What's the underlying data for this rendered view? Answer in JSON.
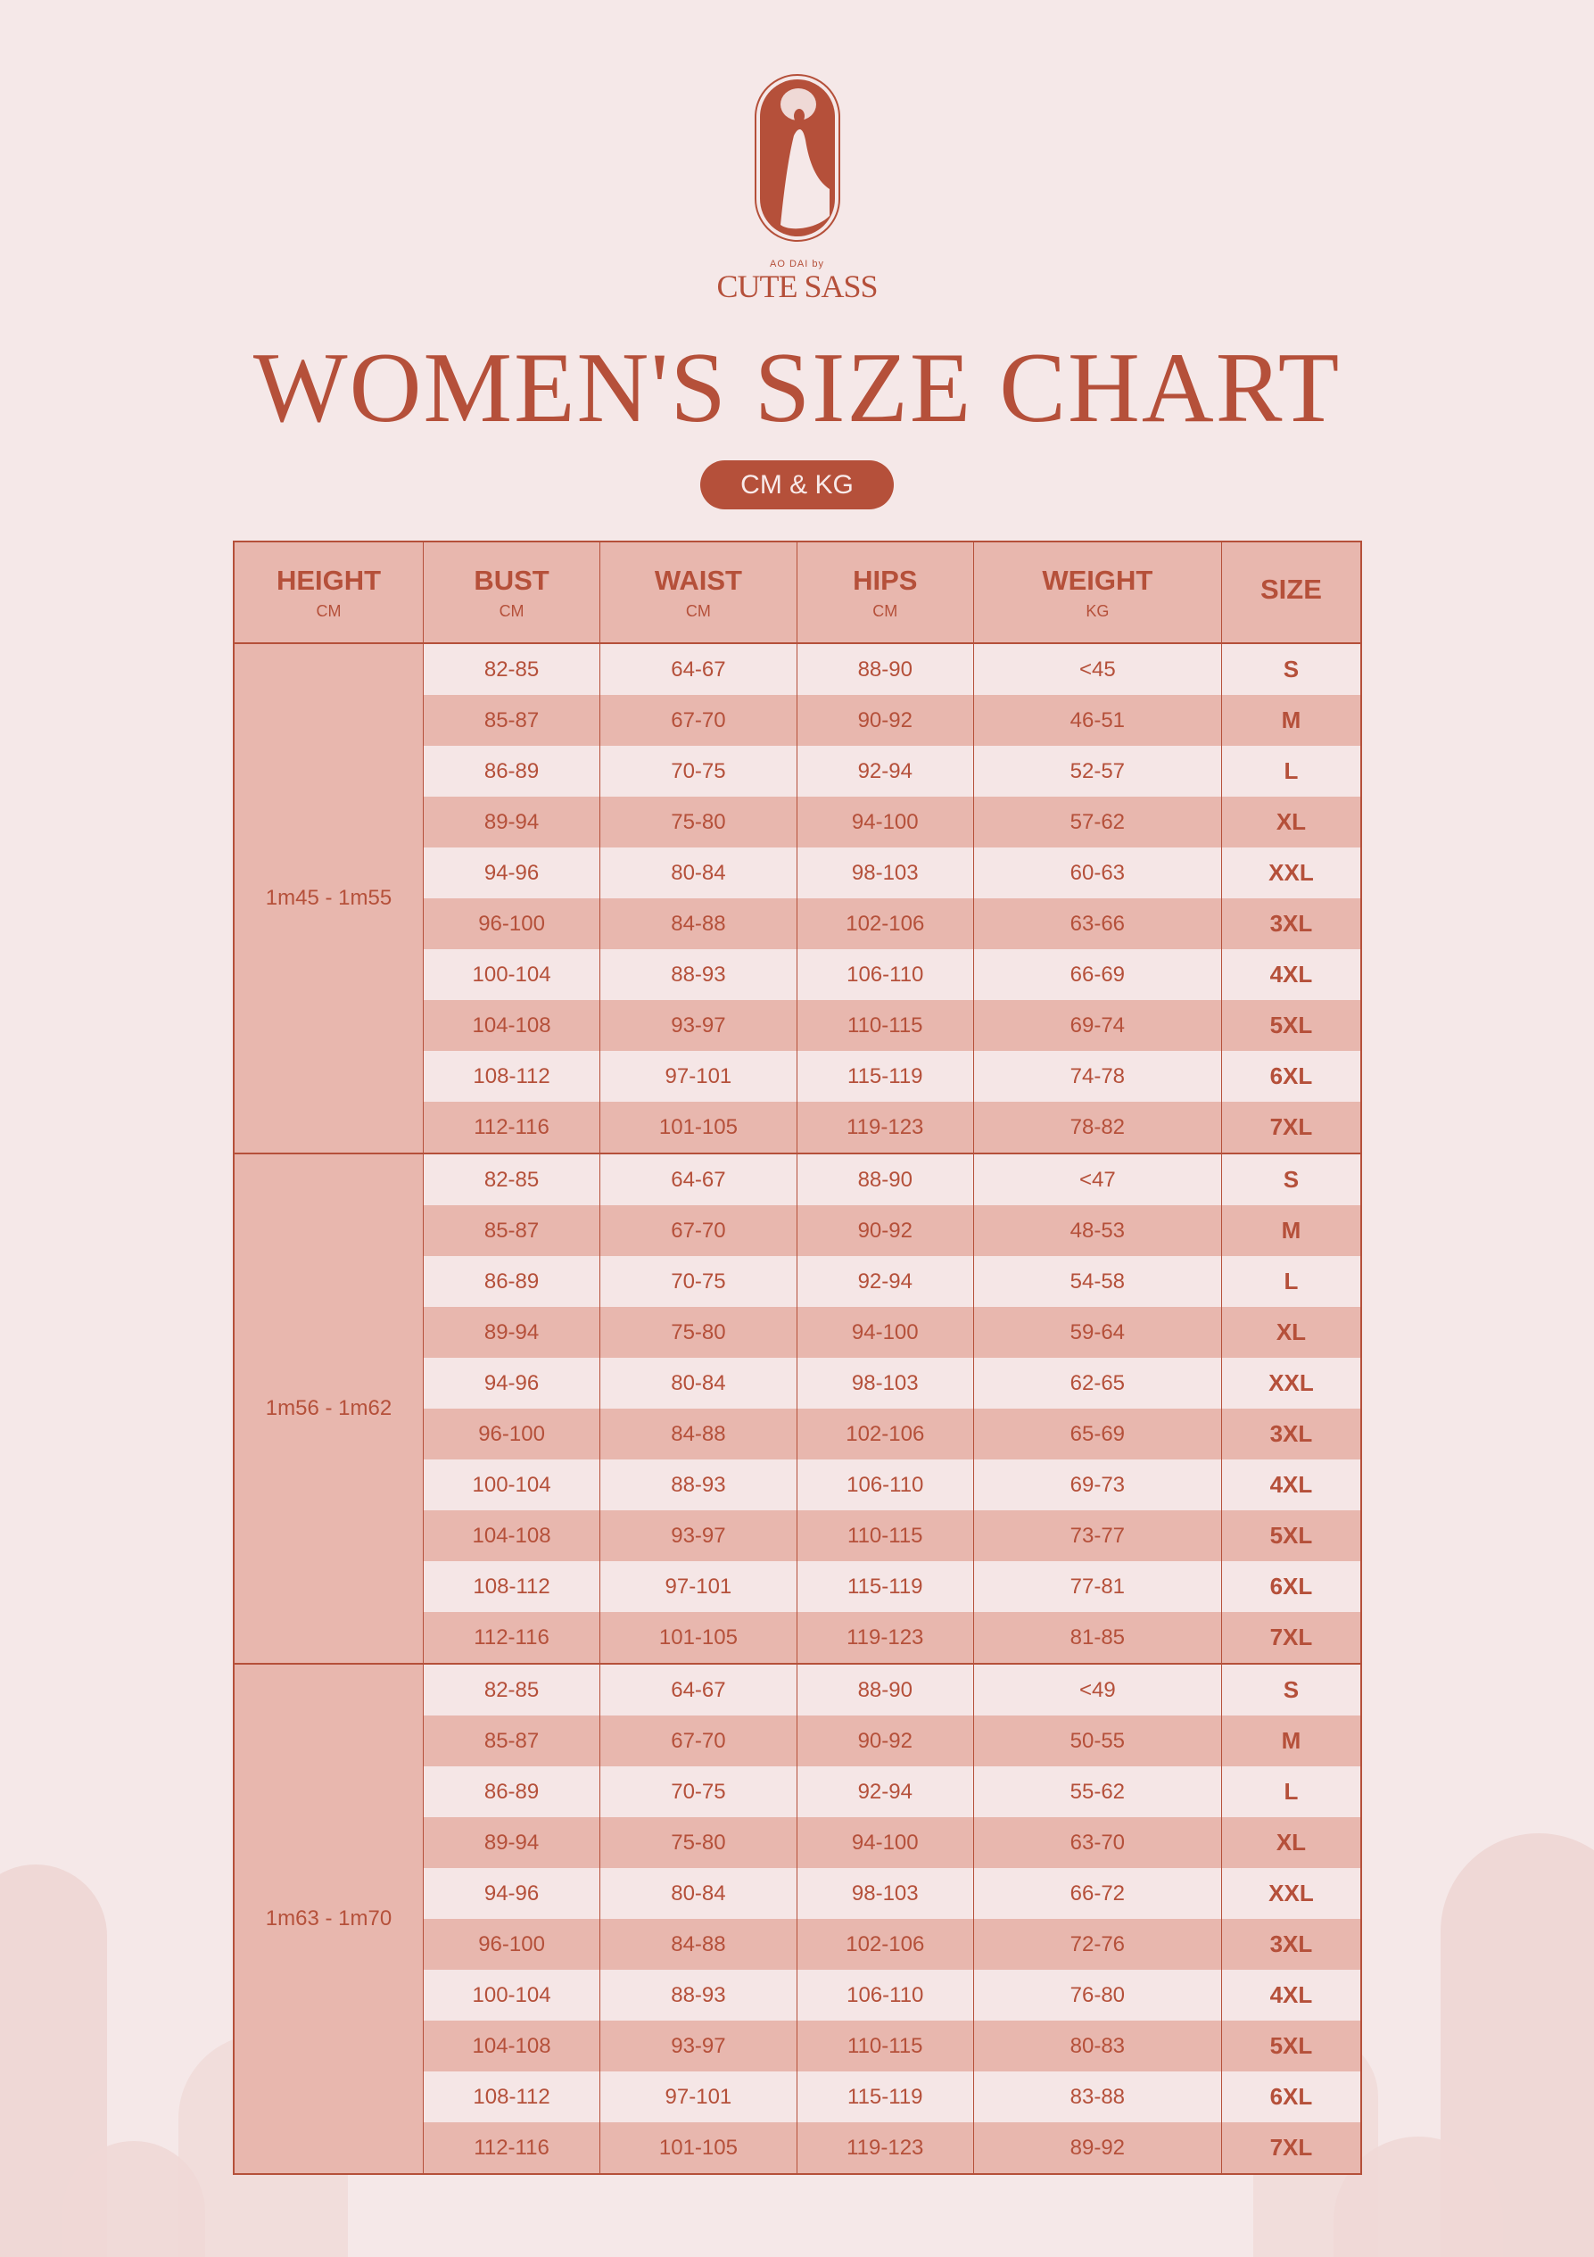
{
  "brand": {
    "tagline": "AO DAI by",
    "name": "CUTE SASS"
  },
  "title": "WOMEN'S SIZE CHART",
  "unit_badge": "CM & KG",
  "colors": {
    "accent": "#b5503a",
    "background": "#f5e8e8",
    "row_dark": "#e8b7ae",
    "row_light": "#f5e6e6"
  },
  "table": {
    "headers": [
      {
        "label": "HEIGHT",
        "unit": "CM"
      },
      {
        "label": "BUST",
        "unit": "CM"
      },
      {
        "label": "WAIST",
        "unit": "CM"
      },
      {
        "label": "HIPS",
        "unit": "CM"
      },
      {
        "label": "WEIGHT",
        "unit": "KG"
      },
      {
        "label": "SIZE",
        "unit": ""
      }
    ],
    "groups": [
      {
        "height": "1m45 - 1m55",
        "rows": [
          [
            "82-85",
            "64-67",
            "88-90",
            "<45",
            "S"
          ],
          [
            "85-87",
            "67-70",
            "90-92",
            "46-51",
            "M"
          ],
          [
            "86-89",
            "70-75",
            "92-94",
            "52-57",
            "L"
          ],
          [
            "89-94",
            "75-80",
            "94-100",
            "57-62",
            "XL"
          ],
          [
            "94-96",
            "80-84",
            "98-103",
            "60-63",
            "XXL"
          ],
          [
            "96-100",
            "84-88",
            "102-106",
            "63-66",
            "3XL"
          ],
          [
            "100-104",
            "88-93",
            "106-110",
            "66-69",
            "4XL"
          ],
          [
            "104-108",
            "93-97",
            "110-115",
            "69-74",
            "5XL"
          ],
          [
            "108-112",
            "97-101",
            "115-119",
            "74-78",
            "6XL"
          ],
          [
            "112-116",
            "101-105",
            "119-123",
            "78-82",
            "7XL"
          ]
        ]
      },
      {
        "height": "1m56 - 1m62",
        "rows": [
          [
            "82-85",
            "64-67",
            "88-90",
            "<47",
            "S"
          ],
          [
            "85-87",
            "67-70",
            "90-92",
            "48-53",
            "M"
          ],
          [
            "86-89",
            "70-75",
            "92-94",
            "54-58",
            "L"
          ],
          [
            "89-94",
            "75-80",
            "94-100",
            "59-64",
            "XL"
          ],
          [
            "94-96",
            "80-84",
            "98-103",
            "62-65",
            "XXL"
          ],
          [
            "96-100",
            "84-88",
            "102-106",
            "65-69",
            "3XL"
          ],
          [
            "100-104",
            "88-93",
            "106-110",
            "69-73",
            "4XL"
          ],
          [
            "104-108",
            "93-97",
            "110-115",
            "73-77",
            "5XL"
          ],
          [
            "108-112",
            "97-101",
            "115-119",
            "77-81",
            "6XL"
          ],
          [
            "112-116",
            "101-105",
            "119-123",
            "81-85",
            "7XL"
          ]
        ]
      },
      {
        "height": "1m63 - 1m70",
        "rows": [
          [
            "82-85",
            "64-67",
            "88-90",
            "<49",
            "S"
          ],
          [
            "85-87",
            "67-70",
            "90-92",
            "50-55",
            "M"
          ],
          [
            "86-89",
            "70-75",
            "92-94",
            "55-62",
            "L"
          ],
          [
            "89-94",
            "75-80",
            "94-100",
            "63-70",
            "XL"
          ],
          [
            "94-96",
            "80-84",
            "98-103",
            "66-72",
            "XXL"
          ],
          [
            "96-100",
            "84-88",
            "102-106",
            "72-76",
            "3XL"
          ],
          [
            "100-104",
            "88-93",
            "106-110",
            "76-80",
            "4XL"
          ],
          [
            "104-108",
            "93-97",
            "110-115",
            "80-83",
            "5XL"
          ],
          [
            "108-112",
            "97-101",
            "115-119",
            "83-88",
            "6XL"
          ],
          [
            "112-116",
            "101-105",
            "119-123",
            "89-92",
            "7XL"
          ]
        ]
      }
    ]
  }
}
